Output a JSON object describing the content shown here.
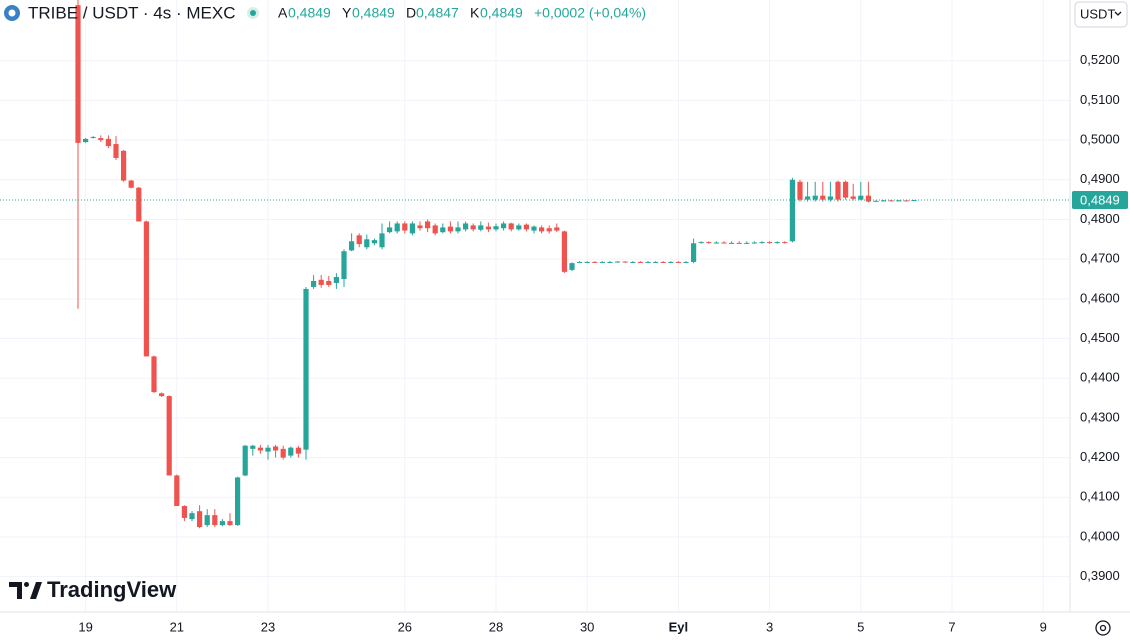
{
  "chart_data": {
    "type": "candlestick",
    "title": "TRIBE / USDT · 4s · MEXC",
    "ohlc_legend": [
      {
        "key": "A",
        "value": "0,4849"
      },
      {
        "key": "Y",
        "value": "0,4849"
      },
      {
        "key": "D",
        "value": "0,4847"
      },
      {
        "key": "K",
        "value": "0,4849"
      }
    ],
    "change": "+0,0002 (+0,04%)",
    "currency": "USDT",
    "brand": "TradingView",
    "up_color": "#26a69a",
    "down_color": "#ef5350",
    "grid": true,
    "categories": [
      null,
      "19",
      null,
      null,
      null,
      null,
      null,
      null,
      null,
      null,
      null,
      null,
      null,
      "21",
      null,
      null,
      null,
      null,
      null,
      null,
      null,
      null,
      null,
      null,
      null,
      "23",
      null,
      null,
      null,
      null,
      null,
      null,
      null,
      null,
      null,
      null,
      null,
      null,
      null,
      null,
      null,
      null,
      null,
      "26",
      null,
      null,
      null,
      null,
      null,
      null,
      null,
      null,
      null,
      null,
      null,
      "28",
      null,
      null,
      null,
      null,
      null,
      null,
      null,
      null,
      null,
      null,
      null,
      "30",
      null,
      null,
      null,
      null,
      null,
      null,
      null,
      null,
      null,
      null,
      null,
      "Eyl",
      null,
      null,
      null,
      null,
      null,
      null,
      null,
      null,
      null,
      null,
      null,
      "3",
      null,
      null,
      null,
      null,
      null,
      null,
      null,
      null,
      null,
      null,
      null,
      "5",
      null,
      null,
      null,
      null,
      null,
      null,
      null,
      null,
      null,
      null,
      null,
      "7",
      null,
      null,
      null,
      null,
      null,
      null,
      null,
      null,
      null,
      null,
      null,
      "9"
    ],
    "open": [
      0.534,
      0.4995,
      0.5006,
      0.5005,
      0.5003,
      0.499,
      0.4973,
      0.4898,
      0.488,
      0.4795,
      0.4455,
      0.4362,
      0.4355,
      0.4155,
      0.4078,
      0.4045,
      0.4065,
      0.403,
      0.4055,
      0.403,
      0.404,
      0.403,
      0.4155,
      0.4222,
      0.4225,
      0.4215,
      0.4228,
      0.4222,
      0.4205,
      0.4225,
      0.422,
      0.463,
      0.4648,
      0.4645,
      0.464,
      0.465,
      0.4722,
      0.476,
      0.473,
      0.474,
      0.473,
      0.4768,
      0.477,
      0.479,
      0.4765,
      0.4785,
      0.4795,
      0.4785,
      0.4768,
      0.4782,
      0.477,
      0.4775,
      0.4785,
      0.4774,
      0.4782,
      0.4775,
      0.4778,
      0.479,
      0.4775,
      0.4787,
      0.4772,
      0.478,
      0.4778,
      0.478,
      0.477,
      0.4673,
      0.4692,
      0.4693,
      0.4693,
      0.4692,
      0.4693,
      0.4693,
      0.4694,
      0.4693,
      0.4693,
      0.4692,
      0.4693,
      0.4693,
      0.4692,
      0.4693,
      0.4692,
      0.4693,
      0.4742,
      0.4743,
      0.4742,
      0.4742,
      0.4741,
      0.4741,
      0.474,
      0.4741,
      0.4742,
      0.4743,
      0.4742,
      0.4743,
      0.4745,
      0.4895,
      0.485,
      0.485,
      0.486,
      0.485,
      0.4895,
      0.4895,
      0.4858,
      0.485,
      0.486,
      0.4846,
      0.4847,
      0.4848,
      0.4847,
      0.4848,
      0.4849,
      null,
      null,
      null,
      null,
      null,
      null,
      null,
      null,
      null,
      null,
      null,
      null,
      null,
      null,
      null,
      null,
      null
    ],
    "high": [
      0.536,
      0.5005,
      0.501,
      0.5012,
      0.5012,
      0.501,
      0.4975,
      0.49,
      0.4882,
      0.4797,
      0.4457,
      0.4364,
      0.4357,
      0.4157,
      0.408,
      0.4065,
      0.408,
      0.407,
      0.407,
      0.4045,
      0.406,
      0.4152,
      0.4232,
      0.4232,
      0.4232,
      0.4232,
      0.4232,
      0.423,
      0.4228,
      0.423,
      0.463,
      0.466,
      0.466,
      0.4658,
      0.4665,
      0.4725,
      0.4765,
      0.4765,
      0.4762,
      0.4752,
      0.479,
      0.4795,
      0.4795,
      0.4795,
      0.4795,
      0.4795,
      0.48,
      0.479,
      0.479,
      0.4795,
      0.4795,
      0.4795,
      0.479,
      0.4795,
      0.4792,
      0.479,
      0.4795,
      0.4792,
      0.479,
      0.479,
      0.4785,
      0.4785,
      0.4785,
      0.479,
      0.4772,
      0.4692,
      0.4695,
      0.4695,
      0.4695,
      0.4695,
      0.4695,
      0.4695,
      0.4695,
      0.4695,
      0.4695,
      0.4695,
      0.4695,
      0.4695,
      0.4695,
      0.4695,
      0.4695,
      0.4752,
      0.4745,
      0.4745,
      0.4745,
      0.4745,
      0.4745,
      0.4745,
      0.4745,
      0.4745,
      0.4745,
      0.4745,
      0.4745,
      0.4745,
      0.4905,
      0.49,
      0.4895,
      0.4895,
      0.4895,
      0.4895,
      0.4898,
      0.4898,
      0.489,
      0.4895,
      0.4895,
      0.4848,
      0.4849,
      0.4849,
      0.4849,
      0.4849,
      0.4849,
      null,
      null,
      null,
      null,
      null,
      null,
      null,
      null,
      null,
      null,
      null,
      null,
      null,
      null,
      null,
      null,
      null
    ],
    "low": [
      0.4575,
      0.4993,
      0.5004,
      0.4995,
      0.498,
      0.495,
      0.4895,
      0.4878,
      0.4795,
      0.4455,
      0.4363,
      0.4353,
      0.4155,
      0.4078,
      0.404,
      0.404,
      0.4022,
      0.4025,
      0.4025,
      0.4027,
      0.4028,
      0.4028,
      0.4153,
      0.4205,
      0.421,
      0.4195,
      0.42,
      0.4195,
      0.42,
      0.42,
      0.4195,
      0.4625,
      0.4628,
      0.463,
      0.4625,
      0.463,
      0.472,
      0.473,
      0.4725,
      0.4735,
      0.4725,
      0.4765,
      0.4765,
      0.4765,
      0.476,
      0.4772,
      0.4768,
      0.476,
      0.4765,
      0.4765,
      0.4765,
      0.477,
      0.477,
      0.477,
      0.4768,
      0.477,
      0.4772,
      0.477,
      0.4772,
      0.477,
      0.4765,
      0.4765,
      0.4765,
      0.4768,
      0.4665,
      0.467,
      0.4691,
      0.4691,
      0.4691,
      0.4691,
      0.4691,
      0.4691,
      0.4691,
      0.4691,
      0.4691,
      0.4691,
      0.4691,
      0.4691,
      0.4691,
      0.4691,
      0.4691,
      0.469,
      0.4739,
      0.4739,
      0.4739,
      0.4739,
      0.4739,
      0.4739,
      0.4739,
      0.4739,
      0.4739,
      0.4739,
      0.4739,
      0.4739,
      0.4742,
      0.4845,
      0.4845,
      0.4845,
      0.4845,
      0.4845,
      0.4845,
      0.485,
      0.4848,
      0.4848,
      0.4843,
      0.4845,
      0.4846,
      0.4846,
      0.4846,
      0.4846,
      0.4847,
      null,
      null,
      null,
      null,
      null,
      null,
      null,
      null,
      null,
      null,
      null,
      null,
      null,
      null,
      null,
      null,
      null
    ],
    "close": [
      0.4993,
      0.5003,
      0.5008,
      0.5,
      0.4985,
      0.4955,
      0.4898,
      0.488,
      0.4795,
      0.4455,
      0.4365,
      0.4355,
      0.4155,
      0.4078,
      0.4048,
      0.406,
      0.4025,
      0.4055,
      0.403,
      0.404,
      0.403,
      0.415,
      0.423,
      0.423,
      0.4218,
      0.4225,
      0.4218,
      0.42,
      0.4225,
      0.421,
      0.4625,
      0.4645,
      0.4635,
      0.4635,
      0.4655,
      0.472,
      0.4745,
      0.4738,
      0.475,
      0.4748,
      0.4765,
      0.478,
      0.479,
      0.4772,
      0.479,
      0.4778,
      0.4778,
      0.4765,
      0.478,
      0.477,
      0.478,
      0.479,
      0.4775,
      0.4785,
      0.4775,
      0.4783,
      0.479,
      0.4775,
      0.4785,
      0.4775,
      0.4782,
      0.477,
      0.477,
      0.4772,
      0.4668,
      0.469,
      0.4693,
      0.4693,
      0.4692,
      0.4693,
      0.4693,
      0.4694,
      0.4693,
      0.4693,
      0.4692,
      0.4693,
      0.4693,
      0.4692,
      0.4693,
      0.4692,
      0.4693,
      0.474,
      0.4743,
      0.4742,
      0.4742,
      0.4741,
      0.4741,
      0.474,
      0.4741,
      0.4742,
      0.4743,
      0.4742,
      0.4743,
      0.4742,
      0.49,
      0.485,
      0.4858,
      0.486,
      0.485,
      0.4858,
      0.485,
      0.4855,
      0.4852,
      0.486,
      0.4845,
      0.4847,
      0.4848,
      0.4847,
      0.4848,
      0.4847,
      0.4849,
      null,
      null,
      null,
      null,
      null,
      null,
      null,
      null,
      null,
      null,
      null,
      null,
      null,
      null,
      null,
      null,
      null
    ],
    "ylim": [
      0.3816,
      0.5353
    ],
    "yticks": [
      {
        "value": 0.39,
        "label": "0,3900"
      },
      {
        "value": 0.4,
        "label": "0,4000"
      },
      {
        "value": 0.41,
        "label": "0,4100"
      },
      {
        "value": 0.42,
        "label": "0,4200"
      },
      {
        "value": 0.43,
        "label": "0,4300"
      },
      {
        "value": 0.44,
        "label": "0,4400"
      },
      {
        "value": 0.45,
        "label": "0,4500"
      },
      {
        "value": 0.46,
        "label": "0,4600"
      },
      {
        "value": 0.47,
        "label": "0,4700"
      },
      {
        "value": 0.48,
        "label": "0,4800"
      },
      {
        "value": 0.49,
        "label": "0,4900"
      },
      {
        "value": 0.5,
        "label": "0,5000"
      },
      {
        "value": 0.51,
        "label": "0,5100"
      },
      {
        "value": 0.52,
        "label": "0,5200"
      }
    ],
    "last_price": {
      "value": 0.4849,
      "label": "0,4849"
    }
  }
}
